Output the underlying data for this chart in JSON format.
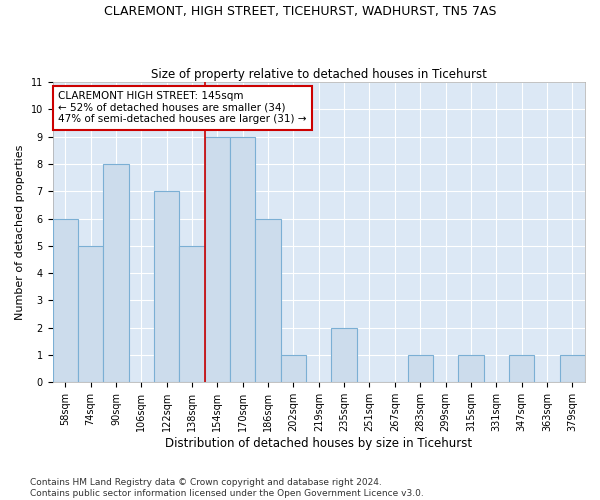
{
  "title": "CLAREMONT, HIGH STREET, TICEHURST, WADHURST, TN5 7AS",
  "subtitle": "Size of property relative to detached houses in Ticehurst",
  "xlabel": "Distribution of detached houses by size in Ticehurst",
  "ylabel": "Number of detached properties",
  "categories": [
    "58sqm",
    "74sqm",
    "90sqm",
    "106sqm",
    "122sqm",
    "138sqm",
    "154sqm",
    "170sqm",
    "186sqm",
    "202sqm",
    "219sqm",
    "235sqm",
    "251sqm",
    "267sqm",
    "283sqm",
    "299sqm",
    "315sqm",
    "331sqm",
    "347sqm",
    "363sqm",
    "379sqm"
  ],
  "values": [
    6,
    5,
    8,
    0,
    7,
    5,
    9,
    9,
    6,
    1,
    0,
    2,
    0,
    0,
    1,
    0,
    1,
    0,
    1,
    0,
    1
  ],
  "bar_color": "#ccdcec",
  "bar_edge_color": "#7bafd4",
  "bar_linewidth": 0.8,
  "ref_line_color": "#cc0000",
  "annotation_text": "CLAREMONT HIGH STREET: 145sqm\n← 52% of detached houses are smaller (34)\n47% of semi-detached houses are larger (31) →",
  "annotation_box_color": "#ffffff",
  "annotation_box_edge_color": "#cc0000",
  "ylim": [
    0,
    11
  ],
  "yticks": [
    0,
    1,
    2,
    3,
    4,
    5,
    6,
    7,
    8,
    9,
    10,
    11
  ],
  "footer": "Contains HM Land Registry data © Crown copyright and database right 2024.\nContains public sector information licensed under the Open Government Licence v3.0.",
  "bg_color": "#ffffff",
  "axes_bg_color": "#dce8f5",
  "grid_color": "#ffffff",
  "title_fontsize": 9,
  "subtitle_fontsize": 8.5,
  "xlabel_fontsize": 8.5,
  "ylabel_fontsize": 8,
  "tick_fontsize": 7,
  "annotation_fontsize": 7.5,
  "footer_fontsize": 6.5
}
